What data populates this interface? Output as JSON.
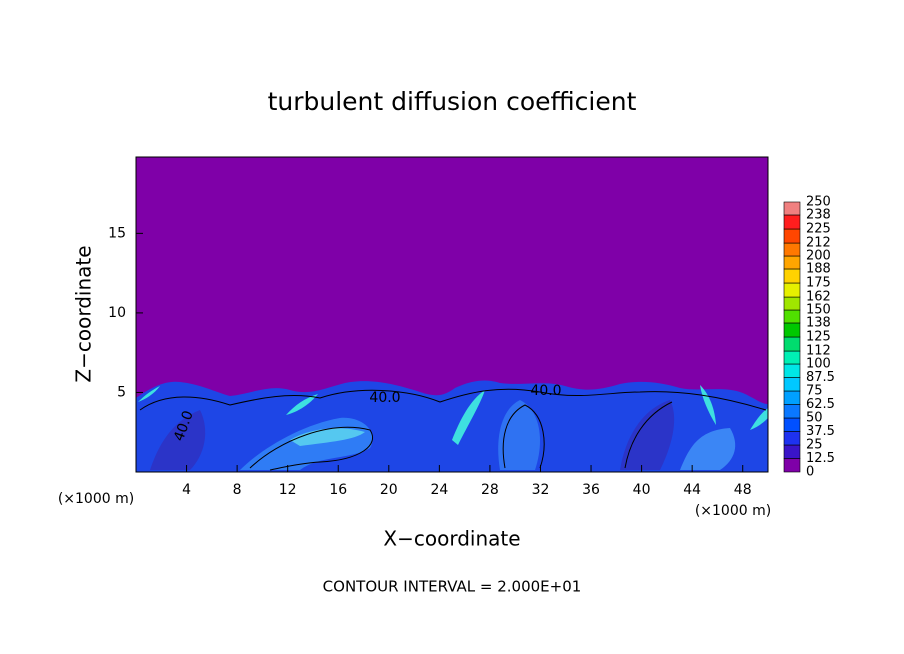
{
  "chart_data": {
    "type": "contour",
    "title": "turbulent diffusion coefficient",
    "x_label": "X−coordinate",
    "y_label": "Z−coordinate",
    "x_unit_label": "(×1000 m)",
    "y_unit_label": "(×1000 m)",
    "footer": "CONTOUR INTERVAL = 2.000E+01",
    "xlim": [
      0,
      50
    ],
    "xticks": [
      4,
      8,
      12,
      16,
      20,
      24,
      28,
      32,
      36,
      40,
      44,
      48
    ],
    "ylim": [
      0,
      19.8
    ],
    "yticks": [
      5,
      10,
      15
    ],
    "contour_labels": [
      "40.0",
      "40.0",
      "40.0"
    ],
    "background_color": "#7f00a8",
    "colorbar": {
      "levels": [
        0,
        12.5,
        25,
        37.5,
        50,
        62.5,
        75,
        87.5,
        100,
        112,
        125,
        138,
        150,
        162,
        175,
        188,
        200,
        212,
        225,
        238,
        250
      ],
      "colors": [
        "#7f00a8",
        "#3a14c8",
        "#1e32f0",
        "#0050ff",
        "#0a78ff",
        "#00a0ff",
        "#00c8ff",
        "#00e6e6",
        "#00f0b4",
        "#00dc6e",
        "#00c800",
        "#50e000",
        "#a0e600",
        "#e6f000",
        "#ffd200",
        "#ffa500",
        "#ff7800",
        "#ff4600",
        "#ff1e1e",
        "#f08080"
      ]
    }
  }
}
